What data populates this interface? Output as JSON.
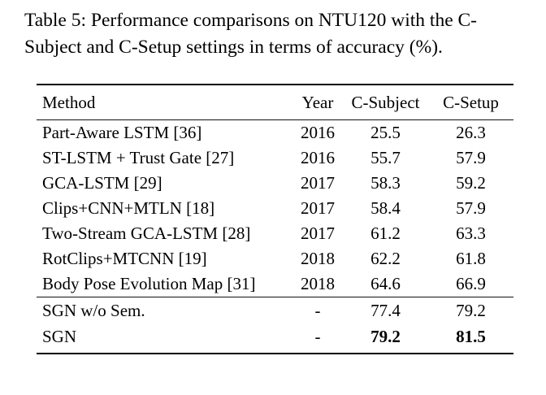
{
  "caption": {
    "line1": "Table 5: Performance comparisons on NTU120 with the C-",
    "line2": "Subject and C-Setup settings in terms of accuracy (%)."
  },
  "table": {
    "headers": {
      "method": "Method",
      "year": "Year",
      "c_subject": "C-Subject",
      "c_setup": "C-Setup"
    },
    "group1": [
      {
        "method": "Part-Aware LSTM [36]",
        "year": "2016",
        "c_subject": "25.5",
        "c_setup": "26.3"
      },
      {
        "method": "ST-LSTM + Trust Gate [27]",
        "year": "2016",
        "c_subject": "55.7",
        "c_setup": "57.9"
      },
      {
        "method": "GCA-LSTM [29]",
        "year": "2017",
        "c_subject": "58.3",
        "c_setup": "59.2"
      },
      {
        "method": "Clips+CNN+MTLN [18]",
        "year": "2017",
        "c_subject": "58.4",
        "c_setup": "57.9"
      },
      {
        "method": "Two-Stream GCA-LSTM [28]",
        "year": "2017",
        "c_subject": "61.2",
        "c_setup": "63.3"
      },
      {
        "method": "RotClips+MTCNN [19]",
        "year": "2018",
        "c_subject": "62.2",
        "c_setup": "61.8"
      },
      {
        "method": "Body Pose Evolution Map [31]",
        "year": "2018",
        "c_subject": "64.6",
        "c_setup": "66.9"
      }
    ],
    "group2": [
      {
        "method": "SGN w/o Sem.",
        "year": "-",
        "c_subject": "77.4",
        "c_setup": "79.2"
      },
      {
        "method": "SGN",
        "year": "-",
        "c_subject": "79.2",
        "c_setup": "81.5"
      }
    ]
  },
  "colors": {
    "background": "#ffffff",
    "text": "#000000",
    "rule": "#000000"
  }
}
